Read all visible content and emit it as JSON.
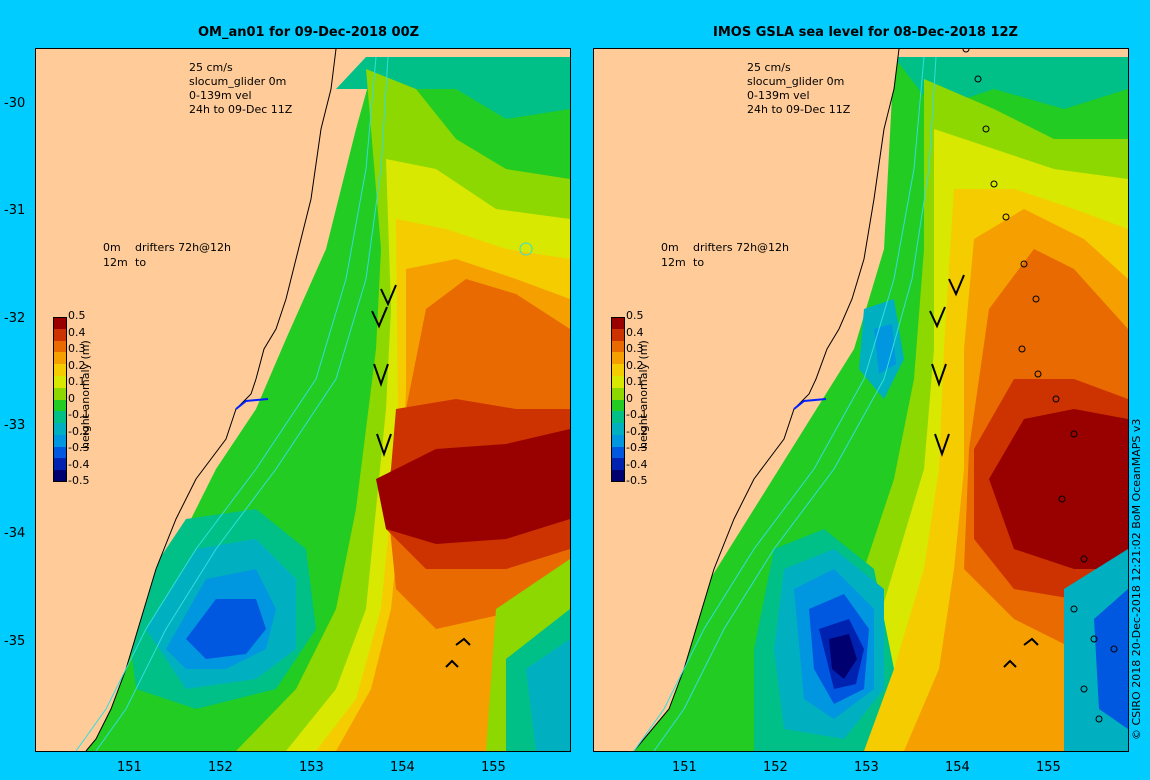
{
  "panels": {
    "left": {
      "title": "OM_an01 for 09-Dec-2018 00Z"
    },
    "right": {
      "title": "IMOS GSLA sea level  for 08-Dec-2018 12Z"
    }
  },
  "legend": {
    "scale": "25 cm/s",
    "glider": "slocum_glider 0m",
    "vel": "0-139m vel",
    "period": "24h to 09-Dec 11Z",
    "drifter_0m": "0m",
    "drifter_title": "drifters 72h@12h",
    "drifter_12m": "12m",
    "drifter_to": "to"
  },
  "colorbar": {
    "label": "height anomaly (m)",
    "ticks": [
      "0.5",
      "0.4",
      "0.3",
      "0.2",
      "0.1",
      "0",
      "-0.1",
      "-0.2",
      "-0.3",
      "-0.4",
      "-0.5"
    ],
    "colors": [
      "#990000",
      "#cc3300",
      "#e86a00",
      "#f5a000",
      "#f5cc00",
      "#d8e800",
      "#8cd800",
      "#22cc22",
      "#00c088",
      "#00b0c0",
      "#0096e0",
      "#0058e0",
      "#0022b0",
      "#000070"
    ]
  },
  "axes": {
    "lat_labels": [
      "-30",
      "-31",
      "-32",
      "-33",
      "-34",
      "-35"
    ],
    "lon_labels": [
      "151",
      "152",
      "153",
      "154",
      "155"
    ]
  },
  "credit": "© CSIRO 2018   20-Dec-2018 12:21:02 BoM OceanMAPS v3"
}
